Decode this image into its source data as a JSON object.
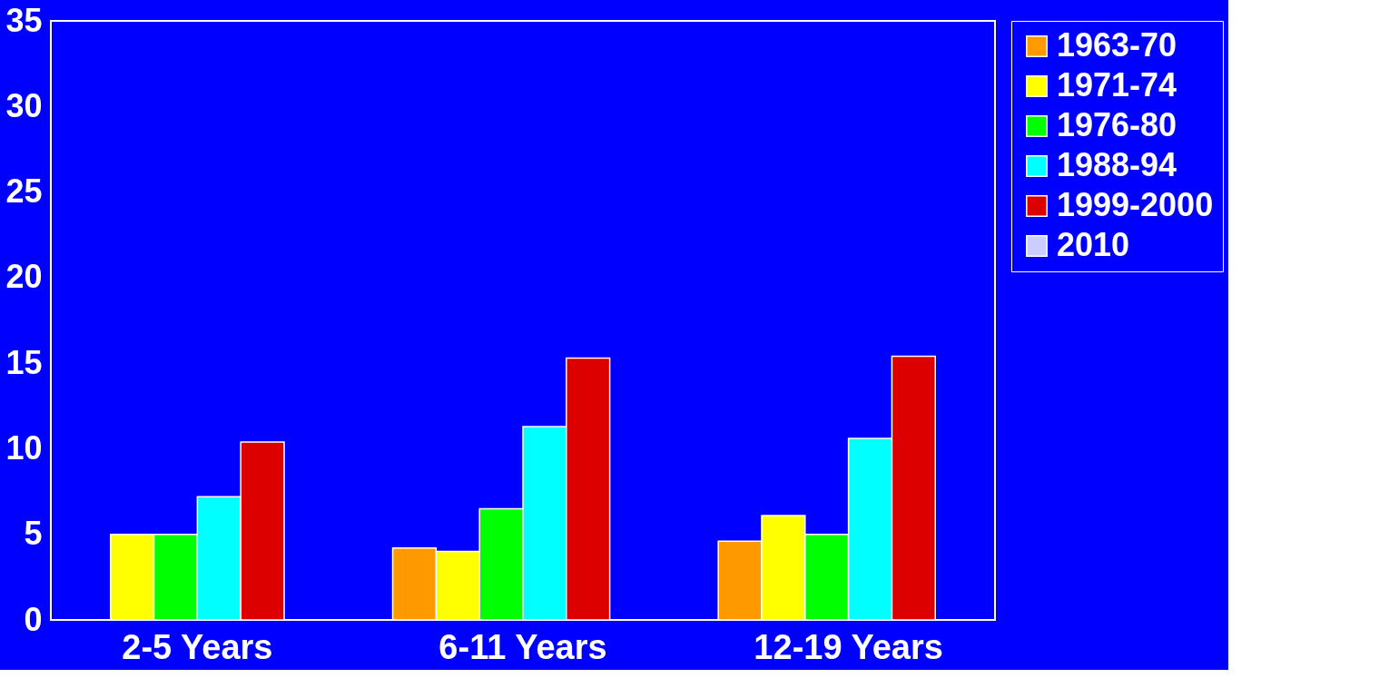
{
  "chart_data": {
    "type": "bar",
    "categories": [
      "2-5 Years",
      "6-11 Years",
      "12-19 Years"
    ],
    "series": [
      {
        "name": "1963-70",
        "color": "#ff9900",
        "values": [
          null,
          4.2,
          4.6
        ]
      },
      {
        "name": "1971-74",
        "color": "#ffff00",
        "values": [
          5.0,
          4.0,
          6.1
        ]
      },
      {
        "name": "1976-80",
        "color": "#00ff00",
        "values": [
          5.0,
          6.5,
          5.0
        ]
      },
      {
        "name": "1988-94",
        "color": "#00ffff",
        "values": [
          7.2,
          11.3,
          10.6
        ]
      },
      {
        "name": "1999-2000",
        "color": "#dd0000",
        "values": [
          10.4,
          15.3,
          15.4
        ]
      },
      {
        "name": "2010",
        "color": "#ccccff",
        "values": [
          null,
          null,
          null
        ]
      }
    ],
    "ylim": [
      0,
      35
    ],
    "yticks": [
      0,
      5,
      10,
      15,
      20,
      25,
      30,
      35
    ],
    "grid": false,
    "legend": "right"
  }
}
